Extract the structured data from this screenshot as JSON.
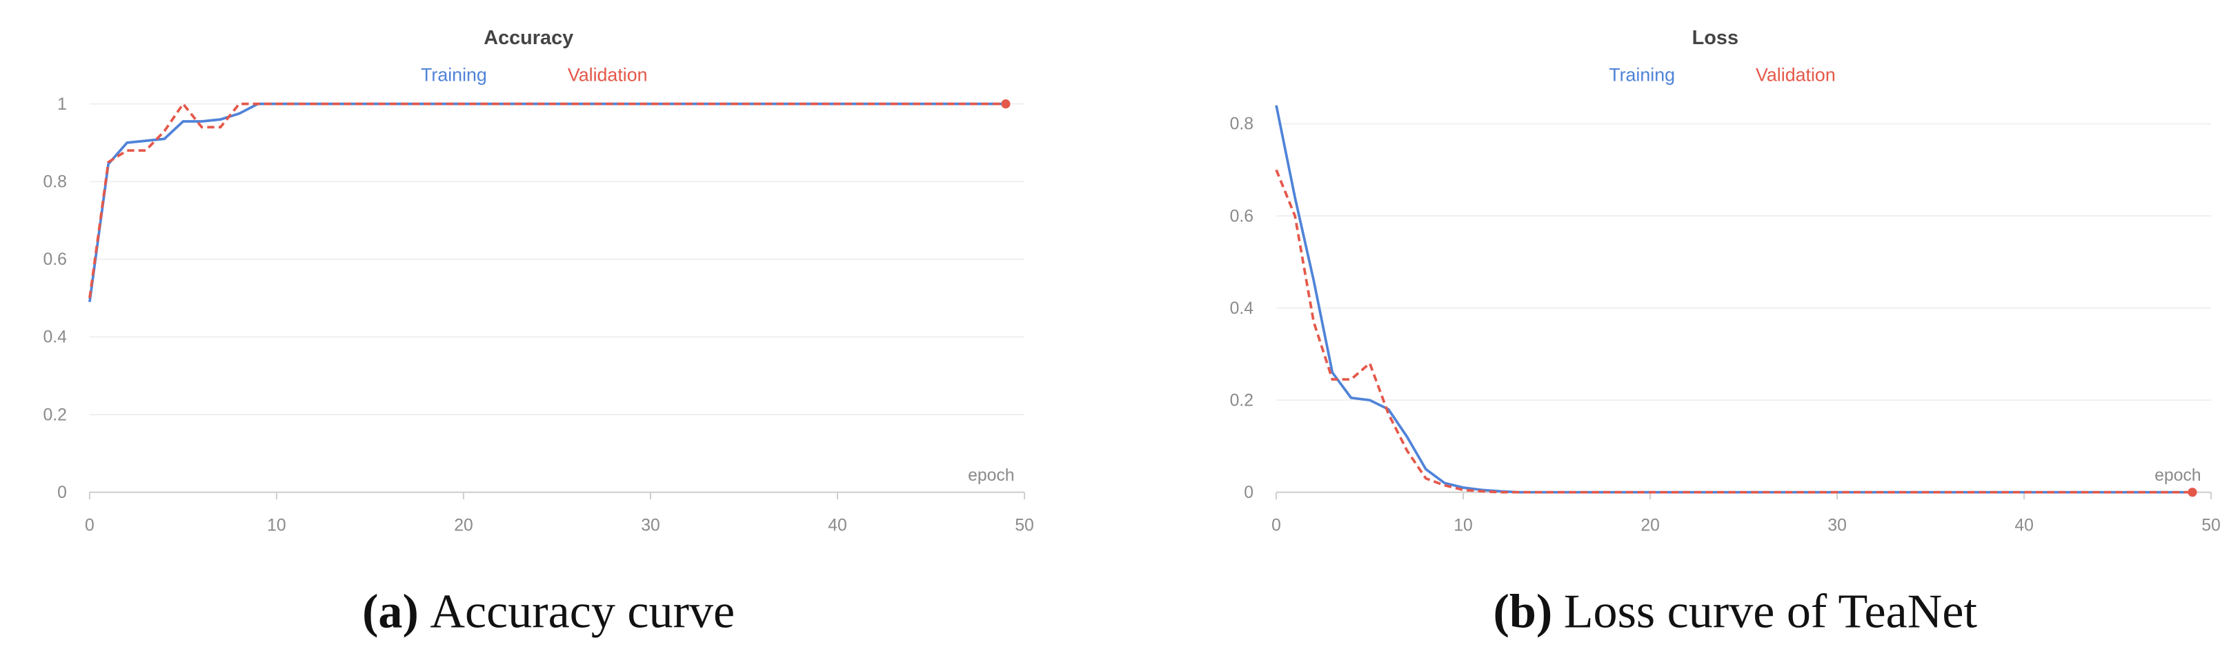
{
  "chart_data": [
    {
      "type": "line",
      "title": "Accuracy",
      "x_label": "epoch",
      "caption_label": "(a)",
      "caption": "Accuracy curve",
      "x": [
        0,
        1,
        2,
        3,
        4,
        5,
        6,
        7,
        8,
        9,
        10,
        11,
        12,
        13,
        14,
        15,
        16,
        17,
        18,
        19,
        20,
        21,
        22,
        23,
        24,
        25,
        26,
        27,
        28,
        29,
        30,
        31,
        32,
        33,
        34,
        35,
        36,
        37,
        38,
        39,
        40,
        41,
        42,
        43,
        44,
        45,
        46,
        47,
        48,
        49
      ],
      "series": [
        {
          "name": "Training",
          "color": "#4f83d8",
          "dashed": false,
          "values": [
            0.49,
            0.845,
            0.9,
            0.905,
            0.91,
            0.955,
            0.955,
            0.96,
            0.975,
            1,
            1,
            1,
            1,
            1,
            1,
            1,
            1,
            1,
            1,
            1,
            1,
            1,
            1,
            1,
            1,
            1,
            1,
            1,
            1,
            1,
            1,
            1,
            1,
            1,
            1,
            1,
            1,
            1,
            1,
            1,
            1,
            1,
            1,
            1,
            1,
            1,
            1,
            1,
            1,
            1
          ]
        },
        {
          "name": "Validation",
          "color": "#e4584a",
          "dashed": true,
          "values": [
            0.5,
            0.85,
            0.88,
            0.88,
            0.93,
            1,
            0.94,
            0.94,
            1,
            1,
            1,
            1,
            1,
            1,
            1,
            1,
            1,
            1,
            1,
            1,
            1,
            1,
            1,
            1,
            1,
            1,
            1,
            1,
            1,
            1,
            1,
            1,
            1,
            1,
            1,
            1,
            1,
            1,
            1,
            1,
            1,
            1,
            1,
            1,
            1,
            1,
            1,
            1,
            1,
            1
          ]
        }
      ],
      "xlim": [
        0,
        50
      ],
      "xticks": [
        0,
        10,
        20,
        30,
        40,
        50
      ],
      "ylim": [
        0,
        1
      ],
      "yticks": [
        0,
        0.2,
        0.4,
        0.6,
        0.8,
        1
      ],
      "grid": true
    },
    {
      "type": "line",
      "title": "Loss",
      "x_label": "epoch",
      "caption_label": "(b)",
      "caption": "Loss curve of TeaNet",
      "x": [
        0,
        1,
        2,
        3,
        4,
        5,
        6,
        7,
        8,
        9,
        10,
        11,
        12,
        13,
        14,
        15,
        16,
        17,
        18,
        19,
        20,
        21,
        22,
        23,
        24,
        25,
        26,
        27,
        28,
        29,
        30,
        31,
        32,
        33,
        34,
        35,
        36,
        37,
        38,
        39,
        40,
        41,
        42,
        43,
        44,
        45,
        46,
        47,
        48,
        49
      ],
      "series": [
        {
          "name": "Training",
          "color": "#4f83d8",
          "dashed": false,
          "values": [
            0.84,
            0.64,
            0.46,
            0.26,
            0.205,
            0.2,
            0.18,
            0.12,
            0.05,
            0.02,
            0.01,
            0.005,
            0.002,
            0,
            0,
            0,
            0,
            0,
            0,
            0,
            0,
            0,
            0,
            0,
            0,
            0,
            0,
            0,
            0,
            0,
            0,
            0,
            0,
            0,
            0,
            0,
            0,
            0,
            0,
            0,
            0,
            0,
            0,
            0,
            0,
            0,
            0,
            0,
            0,
            0
          ]
        },
        {
          "name": "Validation",
          "color": "#e4584a",
          "dashed": true,
          "values": [
            0.7,
            0.6,
            0.37,
            0.245,
            0.245,
            0.28,
            0.17,
            0.09,
            0.03,
            0.015,
            0.005,
            0.002,
            0,
            0,
            0,
            0,
            0,
            0,
            0,
            0,
            0,
            0,
            0,
            0,
            0,
            0,
            0,
            0,
            0,
            0,
            0,
            0,
            0,
            0,
            0,
            0,
            0,
            0,
            0,
            0,
            0,
            0,
            0,
            0,
            0,
            0,
            0,
            0,
            0,
            0
          ]
        }
      ],
      "xlim": [
        0,
        50
      ],
      "xticks": [
        0,
        10,
        20,
        30,
        40,
        50
      ],
      "ylim": [
        0,
        0.8
      ],
      "yticks": [
        0,
        0.2,
        0.4,
        0.6,
        0.8
      ],
      "grid": true
    }
  ]
}
